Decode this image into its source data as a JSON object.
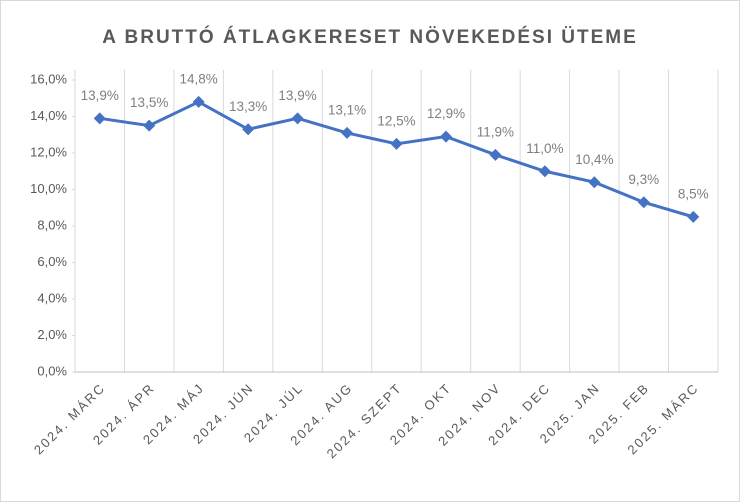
{
  "chart_data": {
    "type": "line",
    "title": "A BRUTTÓ ÁTLAGKERESET NÖVEKEDÉSI ÜTEME",
    "categories": [
      "2024. MÁRC",
      "2024. ÁPR",
      "2024. MÁJ",
      "2024. JÚN",
      "2024. JÚL",
      "2024. AUG",
      "2024. SZEPT",
      "2024. OKT",
      "2024. NOV",
      "2024. DEC",
      "2025. JAN",
      "2025. FEB",
      "2025. MÁRC"
    ],
    "series": [
      {
        "name": "A bruttó átlagkereset növekedési üteme",
        "color": "#4472c4",
        "values": [
          13.9,
          13.5,
          14.8,
          13.3,
          13.9,
          13.1,
          12.5,
          12.9,
          11.9,
          11.0,
          10.4,
          9.3,
          8.5
        ],
        "value_labels": [
          "13,9%",
          "13,5%",
          "14,8%",
          "13,3%",
          "13,9%",
          "13,1%",
          "12,5%",
          "12,9%",
          "11,9%",
          "11,0%",
          "10,4%",
          "9,3%",
          "8,5%"
        ]
      }
    ],
    "ylim": [
      0,
      16
    ],
    "yticks": [
      {
        "value": 0,
        "label": "0,0%"
      },
      {
        "value": 2,
        "label": "2,0%"
      },
      {
        "value": 4,
        "label": "4,0%"
      },
      {
        "value": 6,
        "label": "6,0%"
      },
      {
        "value": 8,
        "label": "8,0%"
      },
      {
        "value": 10,
        "label": "10,0%"
      },
      {
        "value": 12,
        "label": "12,0%"
      },
      {
        "value": 14,
        "label": "14,0%"
      },
      {
        "value": 16,
        "label": "16,0%"
      }
    ]
  }
}
